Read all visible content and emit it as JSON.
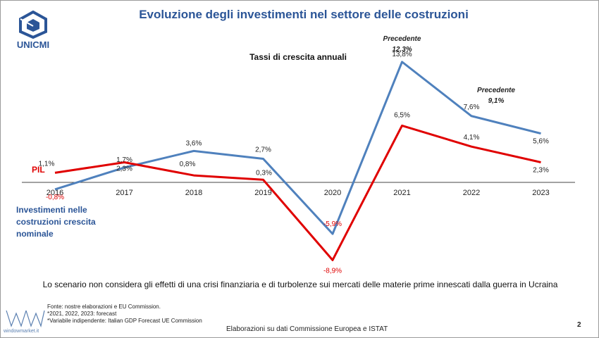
{
  "slide": {
    "title": "Evoluzione degli investimenti nel settore delle costruzioni",
    "brand": "UNICMI",
    "scenario_note": "Lo scenario non considera gli effetti di una crisi finanziaria e di turbolenze sui mercati delle materie prime innescati dalla guerra in Ucraina",
    "sources": [
      "Fonte: nostre elaborazioni e EU Commission.",
      "*2021, 2022, 2023: forecast",
      "*Variabile indipendente: Italian GDP Forecast UE Commission"
    ],
    "elaboration": "Elaborazioni su dati Commissione Europea e ISTAT",
    "page_number": "2",
    "watermark": "windowmarket.it"
  },
  "colors": {
    "title": "#2b5597",
    "investimenti": "#4f81bd",
    "pil": "#e00000",
    "text": "#222222"
  },
  "chart_data": {
    "type": "line",
    "title": "Tassi di crescita annuali",
    "categories": [
      "2016",
      "2017",
      "2018",
      "2019",
      "2020",
      "2021",
      "2022",
      "2023"
    ],
    "series": [
      {
        "name": "Investimenti nelle costruzioni crescita nominale",
        "values": [
          -0.8,
          1.7,
          3.6,
          2.7,
          -5.9,
          13.8,
          7.6,
          5.6
        ],
        "labels": [
          "-0,8%",
          "1,7%",
          "3,6%",
          "2,7%",
          "-5,9%",
          "13,8%",
          "7,6%",
          "5,6%"
        ]
      },
      {
        "name": "PIL",
        "values": [
          1.1,
          2.3,
          0.8,
          0.3,
          -8.9,
          6.5,
          4.1,
          2.3
        ],
        "labels": [
          "1,1%",
          "2,3%",
          "0,8%",
          "0,3%",
          "-8,9%",
          "6,5%",
          "4,1%",
          "2,3%"
        ]
      }
    ],
    "annotations": [
      {
        "category": "2021",
        "text": "Precedente",
        "value": "12,3%"
      },
      {
        "category": "2022",
        "text": "Precedente",
        "value": "9,1%"
      }
    ],
    "ylim": [
      -10,
      15
    ],
    "grid": false,
    "legend": "inline"
  }
}
